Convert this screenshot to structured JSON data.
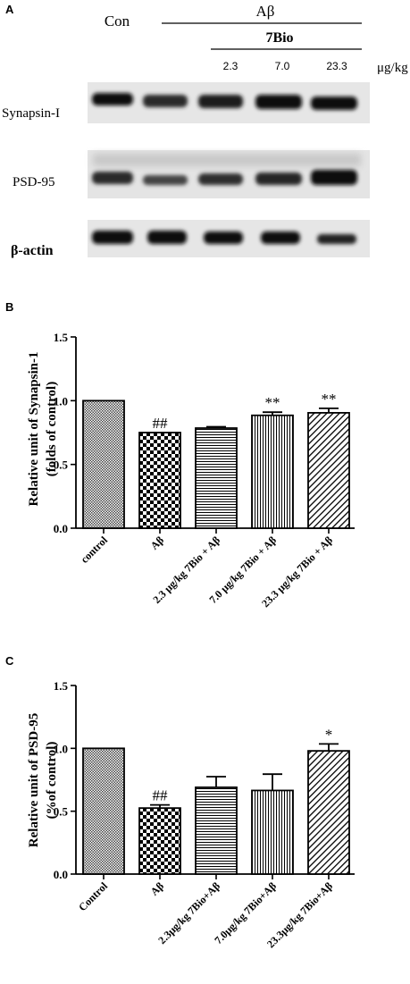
{
  "panel_a": {
    "letter": "A",
    "con_label": "Con",
    "abeta_label": "Aβ",
    "drug_label": "7Bio",
    "doses": [
      "2.3",
      "7.0",
      "23.3"
    ],
    "dose_unit": "μg/kg",
    "rows": [
      "Synapsin-I",
      "PSD-95",
      "β-actin"
    ]
  },
  "chart_data": [
    {
      "panel": "B",
      "type": "bar",
      "title": "",
      "ylabel_line1": "Relative unit of Synapsin-1",
      "ylabel_line2": "(folds of control)",
      "categories": [
        "control",
        "Aβ",
        "2.3 μg/kg 7Bio + Aβ",
        "7.0 μg/kg 7Bio + Aβ",
        "23.3 μg/kg 7Bio + Aβ"
      ],
      "values": [
        1.0,
        0.75,
        0.785,
        0.885,
        0.905
      ],
      "errors": [
        0,
        0,
        0.01,
        0.025,
        0.035
      ],
      "annotations": [
        "",
        "##",
        "",
        "**",
        "**"
      ],
      "patterns": [
        "cross",
        "checker",
        "hlines",
        "vlines",
        "diag"
      ],
      "ylim": [
        0,
        1.5
      ],
      "yticks": [
        "0.0",
        "0.5",
        "1.0",
        "1.5"
      ]
    },
    {
      "panel": "C",
      "type": "bar",
      "title": "",
      "ylabel_line1": "Relative unit of PSD-95",
      "ylabel_line2": "(%of control)",
      "categories": [
        "Control",
        "Aβ",
        "2.3μg/kg 7Bio+Aβ",
        "7.0μg/kg 7Bio+Aβ",
        "23.3μg/kg 7Bio+Aβ"
      ],
      "values": [
        1.0,
        0.525,
        0.69,
        0.665,
        0.98
      ],
      "errors": [
        0,
        0.025,
        0.085,
        0.13,
        0.055
      ],
      "annotations": [
        "",
        "##",
        "",
        "",
        "*"
      ],
      "patterns": [
        "cross",
        "checker",
        "hlines",
        "vlines",
        "diag"
      ],
      "ylim": [
        0,
        1.5
      ],
      "yticks": [
        "0.0",
        "0.5",
        "1.0",
        "1.5"
      ]
    }
  ]
}
